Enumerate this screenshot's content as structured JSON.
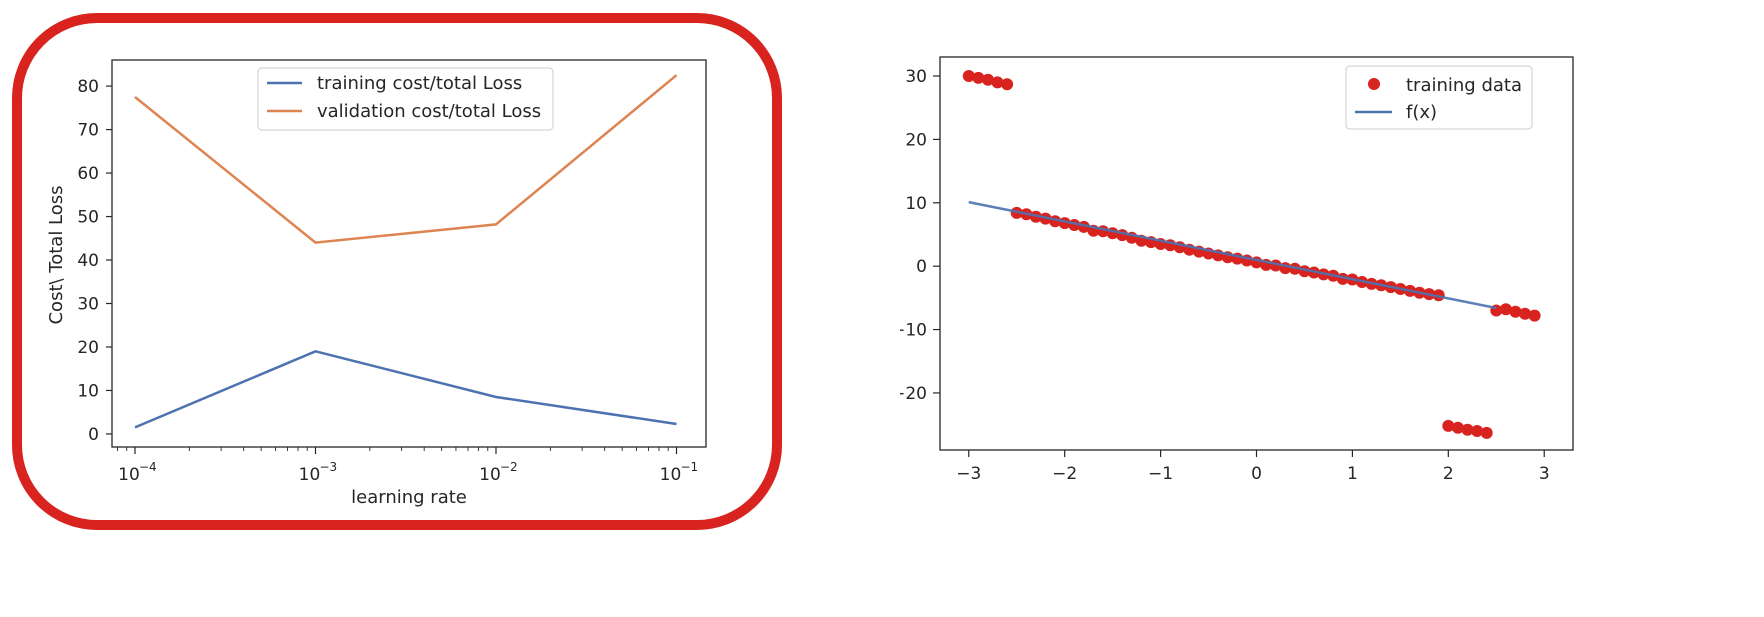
{
  "chart_data": [
    {
      "type": "line",
      "xlabel": "learning rate",
      "ylabel": "Cost\\ Total Loss",
      "x_scale": "log",
      "x": [
        0.0001,
        0.001,
        0.01,
        0.1
      ],
      "x_tick_labels": [
        {
          "base": "10",
          "exp": "−4"
        },
        {
          "base": "10",
          "exp": "−3"
        },
        {
          "base": "10",
          "exp": "−2"
        },
        {
          "base": "10",
          "exp": "−1"
        }
      ],
      "ylim": [
        -3,
        86
      ],
      "y_ticks": [
        "0",
        "10",
        "20",
        "30",
        "40",
        "50",
        "60",
        "70",
        "80"
      ],
      "grid": false,
      "legend_position": "top-center",
      "series": [
        {
          "name": "training cost/total Loss",
          "color": "#4c72b0",
          "values": [
            1.5,
            19,
            8.5,
            2.3
          ]
        },
        {
          "name": "validation cost/total Loss",
          "color": "#dd8452",
          "values": [
            77.5,
            44,
            48.2,
            82.5
          ]
        }
      ],
      "highlight_frame_color": "#d8231e"
    },
    {
      "type": "scatter",
      "xlim": [
        -3.3,
        3.3
      ],
      "ylim": [
        -29,
        33
      ],
      "x_ticks": [
        "−3",
        "−2",
        "−1",
        "0",
        "1",
        "2",
        "3"
      ],
      "y_ticks": [
        "−20",
        "−10",
        "0",
        "10",
        "20",
        "30"
      ],
      "grid": false,
      "legend_position": "top-right",
      "series": [
        {
          "name": "training data",
          "kind": "scatter",
          "color": "#d8231e",
          "x": [
            -3.0,
            -2.9,
            -2.8,
            -2.7,
            -2.6,
            -2.5,
            -2.4,
            -2.3,
            -2.2,
            -2.1,
            -2.0,
            -1.9,
            -1.8,
            -1.7,
            -1.6,
            -1.5,
            -1.4,
            -1.3,
            -1.2,
            -1.1,
            -1.0,
            -0.9,
            -0.8,
            -0.7,
            -0.6,
            -0.5,
            -0.4,
            -0.3,
            -0.2,
            -0.1,
            0.0,
            0.1,
            0.2,
            0.3,
            0.4,
            0.5,
            0.6,
            0.7,
            0.8,
            0.9,
            1.0,
            1.1,
            1.2,
            1.3,
            1.4,
            1.5,
            1.6,
            1.7,
            1.8,
            1.9,
            2.0,
            2.1,
            2.2,
            2.3,
            2.4,
            2.5,
            2.6,
            2.7,
            2.8,
            2.9
          ],
          "y": [
            30.0,
            29.7,
            29.4,
            29.0,
            28.7,
            8.4,
            8.2,
            7.8,
            7.5,
            7.1,
            6.8,
            6.5,
            6.2,
            5.6,
            5.5,
            5.2,
            4.9,
            4.5,
            4.0,
            3.8,
            3.5,
            3.3,
            3.0,
            2.6,
            2.3,
            2.0,
            1.7,
            1.4,
            1.2,
            0.9,
            0.6,
            0.2,
            0.1,
            -0.3,
            -0.4,
            -0.8,
            -1.0,
            -1.3,
            -1.5,
            -2.0,
            -2.1,
            -2.5,
            -2.8,
            -3.0,
            -3.3,
            -3.6,
            -3.9,
            -4.2,
            -4.4,
            -4.6,
            -25.2,
            -25.5,
            -25.8,
            -26.0,
            -26.3,
            -7.0,
            -6.8,
            -7.2,
            -7.5,
            -7.8
          ]
        },
        {
          "name": "f(x)",
          "kind": "line",
          "color": "#4c72b0",
          "x": [
            -3.0,
            2.5
          ],
          "y": [
            10.1,
            -6.6
          ]
        }
      ]
    }
  ]
}
